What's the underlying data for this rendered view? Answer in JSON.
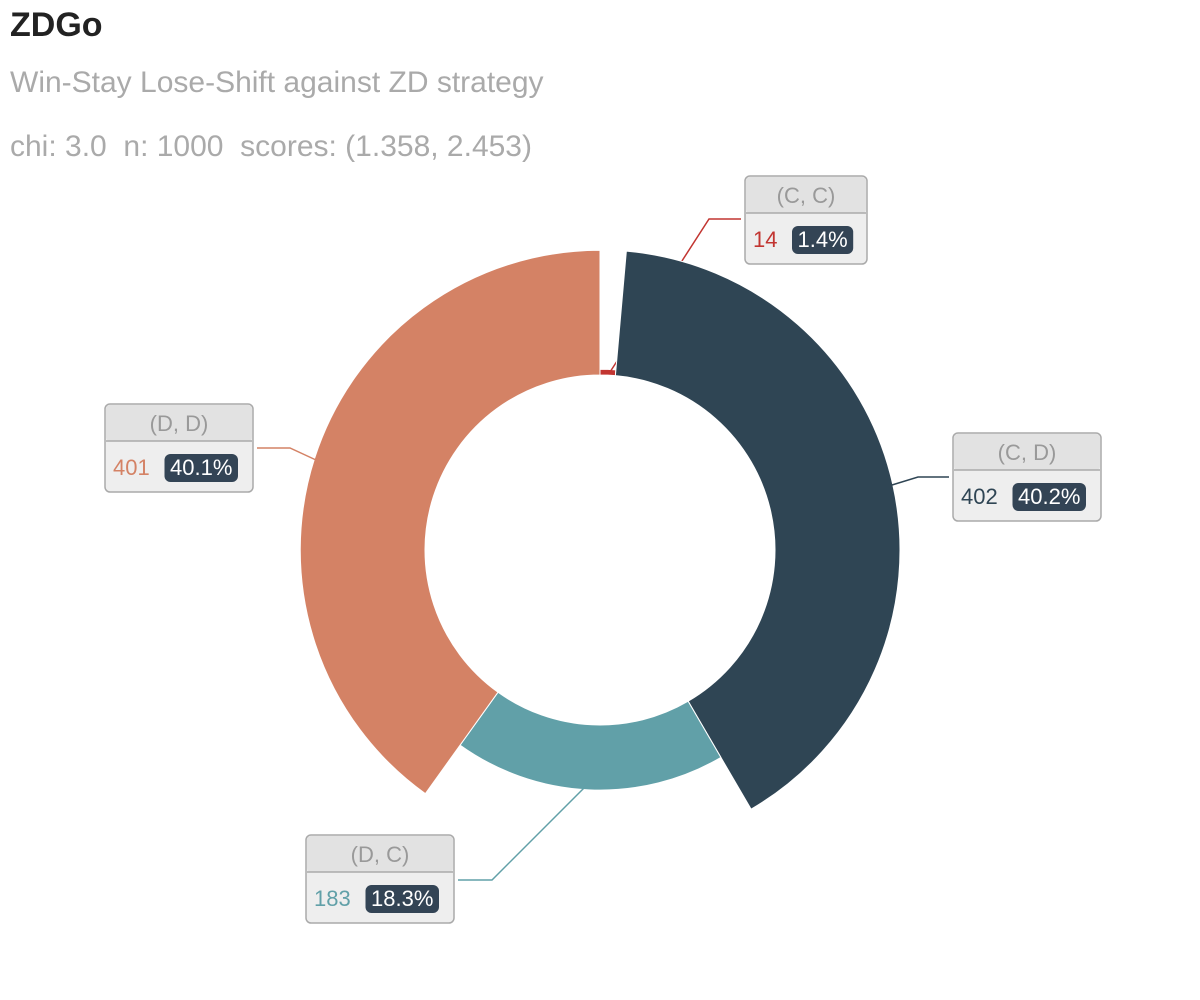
{
  "header": {
    "title": "ZDGo",
    "subtitle": "Win-Stay Lose-Shift against ZD strategy",
    "stats": "chi: 3.0  n: 1000  scores: (1.358, 2.453)"
  },
  "chart_data": {
    "type": "pie",
    "variant": "rose-donut",
    "legend": "none",
    "slices": [
      {
        "label": "(C, C)",
        "value": 14,
        "percent": "1.4%",
        "color": "#c23531"
      },
      {
        "label": "(C, D)",
        "value": 402,
        "percent": "40.2%",
        "color": "#2f4554"
      },
      {
        "label": "(D, C)",
        "value": 183,
        "percent": "18.3%",
        "color": "#61a0a8"
      },
      {
        "label": "(D, D)",
        "value": 401,
        "percent": "40.1%",
        "color": "#d48265"
      }
    ]
  }
}
